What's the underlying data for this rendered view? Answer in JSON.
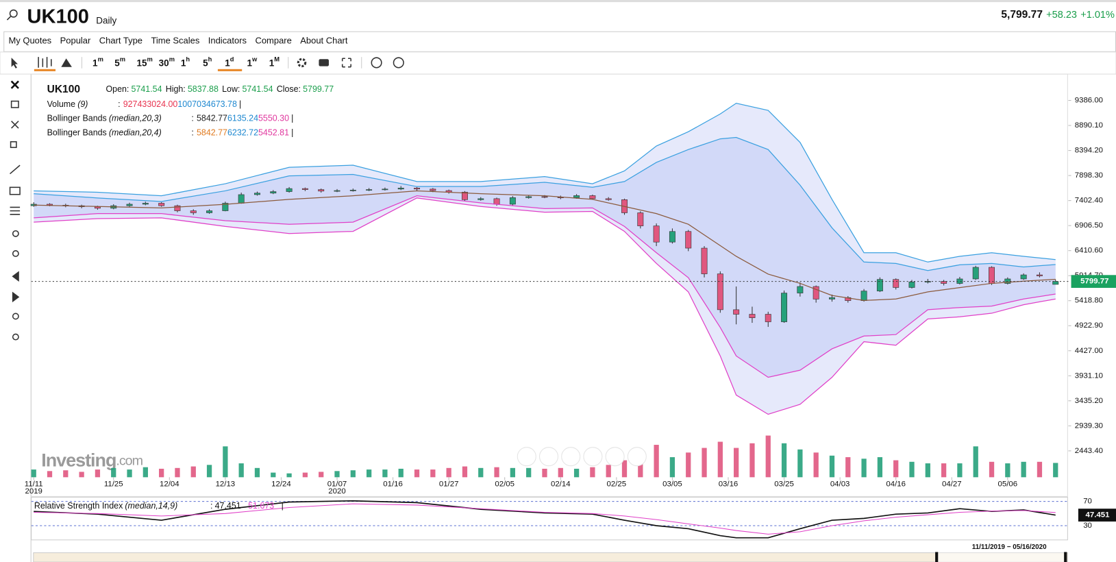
{
  "header": {
    "symbol": "UK100",
    "interval": "Daily",
    "price": "5,799.77",
    "change": "+58.23",
    "change_pct": "+1.01%"
  },
  "menu": [
    "My Quotes",
    "Popular",
    "Chart Type",
    "Time Scales",
    "Indicators",
    "Compare",
    "About Chart"
  ],
  "timeframes": [
    {
      "num": "1",
      "unit": "m"
    },
    {
      "num": "5",
      "unit": "m"
    },
    {
      "num": "15",
      "unit": "m"
    },
    {
      "num": "30",
      "unit": "m"
    },
    {
      "num": "1",
      "unit": "h"
    },
    {
      "num": "5",
      "unit": "h"
    },
    {
      "num": "1",
      "unit": "d",
      "active": true
    },
    {
      "num": "1",
      "unit": "w"
    },
    {
      "num": "1",
      "unit": "M"
    }
  ],
  "chart_data": {
    "type": "candlestick",
    "legend": {
      "symbol": "UK100",
      "fields": [
        {
          "label": "Open:",
          "value": "5741.54"
        },
        {
          "label": "High:",
          "value": "5837.88"
        },
        {
          "label": "Low:",
          "value": "5741.54"
        },
        {
          "label": "Close:",
          "value": "5799.77"
        }
      ],
      "sep": ":",
      "end": "|",
      "indicators": [
        {
          "name": "Volume",
          "params": "(9)",
          "values": [
            {
              "text": "927433024.00",
              "color": "#e8334f"
            },
            {
              "text": "1007034673.78",
              "color": "#1e88d0"
            }
          ]
        },
        {
          "name": "Bollinger Bands",
          "params": "(median,20,3)",
          "values": [
            {
              "text": "5842.77",
              "color": "#222222"
            },
            {
              "text": "6135.24",
              "color": "#1e88d0"
            },
            {
              "text": "5550.30",
              "color": "#e0379e"
            }
          ]
        },
        {
          "name": "Bollinger Bands",
          "params": "(median,20,4)",
          "values": [
            {
              "text": "5842.77",
              "color": "#e07b20"
            },
            {
              "text": "6232.72",
              "color": "#1e88d0"
            },
            {
              "text": "5452.81",
              "color": "#e0379e"
            }
          ]
        }
      ]
    },
    "x": [
      0,
      2,
      4,
      6,
      8,
      10,
      12,
      14,
      16,
      18,
      20,
      22,
      24,
      26,
      28,
      30,
      32,
      34,
      36,
      38,
      40,
      42,
      44,
      46,
      48,
      50,
      52,
      54,
      56,
      58,
      60,
      62,
      64,
      66,
      68,
      70,
      72,
      74,
      76,
      78,
      80,
      82,
      84,
      86,
      88,
      90,
      92,
      94,
      96,
      98,
      100,
      102,
      104,
      106,
      108,
      110,
      112,
      114,
      116,
      118,
      120,
      122,
      124,
      126,
      128
    ],
    "open": [
      7300,
      7330,
      7310,
      7300,
      7280,
      7250,
      7300,
      7330,
      7350,
      7300,
      7200,
      7160,
      7200,
      7350,
      7520,
      7550,
      7580,
      7640,
      7620,
      7590,
      7600,
      7610,
      7620,
      7630,
      7650,
      7630,
      7600,
      7570,
      7420,
      7440,
      7330,
      7460,
      7480,
      7470,
      7460,
      7500,
      7440,
      7420,
      7160,
      6900,
      6580,
      6790,
      6460,
      5950,
      5240,
      5150,
      5150,
      5000,
      5570,
      5700,
      5450,
      5480,
      5420,
      5610,
      5840,
      5680,
      5790,
      5800,
      5760,
      5850,
      6080,
      5760,
      5850,
      5930,
      5741.54
    ],
    "high": [
      7370,
      7350,
      7340,
      7320,
      7300,
      7330,
      7360,
      7380,
      7370,
      7320,
      7230,
      7230,
      7380,
      7560,
      7580,
      7610,
      7670,
      7660,
      7640,
      7630,
      7640,
      7650,
      7660,
      7690,
      7670,
      7650,
      7620,
      7590,
      7470,
      7460,
      7490,
      7510,
      7510,
      7500,
      7530,
      7520,
      7470,
      7440,
      7190,
      6950,
      6850,
      6820,
      6500,
      6000,
      5700,
      5300,
      5200,
      5620,
      5780,
      5720,
      5540,
      5510,
      5650,
      5880,
      5860,
      5830,
      5850,
      5830,
      5890,
      6110,
      6100,
      5880,
      5960,
      5980,
      5837.88
    ],
    "low": [
      7280,
      7290,
      7270,
      7250,
      7220,
      7230,
      7280,
      7310,
      7280,
      7170,
      7120,
      7140,
      7190,
      7340,
      7500,
      7530,
      7560,
      7590,
      7560,
      7570,
      7580,
      7590,
      7600,
      7610,
      7600,
      7570,
      7540,
      7390,
      7400,
      7300,
      7310,
      7440,
      7450,
      7430,
      7440,
      7420,
      7400,
      7120,
      6850,
      6500,
      6550,
      6400,
      5880,
      5180,
      4950,
      4980,
      4900,
      4980,
      5500,
      5380,
      5400,
      5380,
      5400,
      5590,
      5640,
      5660,
      5760,
      5720,
      5740,
      5830,
      5730,
      5740,
      5830,
      5880,
      5741.54
    ],
    "close": [
      7330,
      7310,
      7300,
      7280,
      7250,
      7300,
      7330,
      7350,
      7300,
      7200,
      7160,
      7200,
      7350,
      7520,
      7550,
      7580,
      7640,
      7620,
      7590,
      7600,
      7610,
      7620,
      7630,
      7650,
      7630,
      7600,
      7570,
      7420,
      7440,
      7330,
      7460,
      7480,
      7470,
      7460,
      7500,
      7440,
      7420,
      7160,
      6900,
      6580,
      6790,
      6460,
      5950,
      5240,
      5150,
      5080,
      5000,
      5570,
      5700,
      5450,
      5480,
      5420,
      5610,
      5840,
      5680,
      5790,
      5800,
      5760,
      5850,
      6080,
      5760,
      5850,
      5930,
      5910,
      5799.77
    ],
    "up_color": "#26a17b",
    "down_color": "#e0577f",
    "xlim": [
      -0.3,
      129.6
    ],
    "xticks": [
      {
        "value": 0,
        "label": "11/11"
      },
      {
        "value": 10,
        "label": "11/25"
      },
      {
        "value": 17,
        "label": "12/04"
      },
      {
        "value": 24,
        "label": "12/13"
      },
      {
        "value": 31,
        "label": "12/24"
      },
      {
        "value": 38,
        "label": "01/07"
      },
      {
        "value": 45,
        "label": "01/16"
      },
      {
        "value": 52,
        "label": "01/27"
      },
      {
        "value": 59,
        "label": "02/05"
      },
      {
        "value": 66,
        "label": "02/14"
      },
      {
        "value": 73,
        "label": "02/25"
      },
      {
        "value": 80,
        "label": "03/05"
      },
      {
        "value": 87,
        "label": "03/16"
      },
      {
        "value": 94,
        "label": "03/25"
      },
      {
        "value": 101,
        "label": "04/03"
      },
      {
        "value": 108,
        "label": "04/16"
      },
      {
        "value": 115,
        "label": "04/27"
      },
      {
        "value": 122,
        "label": "05/06"
      }
    ],
    "xtick_years": [
      {
        "value": 0,
        "label": "2019"
      },
      {
        "value": 38,
        "label": "2020"
      }
    ],
    "ylim": [
      1921,
      9894
    ],
    "yticks": [
      {
        "value": 9386,
        "label": "9386.00"
      },
      {
        "value": 8890.1,
        "label": "8890.10"
      },
      {
        "value": 8394.2,
        "label": "8394.20"
      },
      {
        "value": 7898.3,
        "label": "7898.30"
      },
      {
        "value": 7402.4,
        "label": "7402.40"
      },
      {
        "value": 6906.5,
        "label": "6906.50"
      },
      {
        "value": 6410.6,
        "label": "6410.60"
      },
      {
        "value": 5914.7,
        "label": "5914.70"
      },
      {
        "value": 5418.8,
        "label": "5418.80"
      },
      {
        "value": 4922.9,
        "label": "4922.90"
      },
      {
        "value": 4427,
        "label": "4427.00"
      },
      {
        "value": 3931.1,
        "label": "3931.10"
      },
      {
        "value": 3435.2,
        "label": "3435.20"
      },
      {
        "value": 2939.3,
        "label": "2939.30"
      },
      {
        "value": 2443.4,
        "label": "2443.40"
      }
    ],
    "band_x": [
      0,
      8,
      16,
      24,
      32,
      40,
      48,
      56,
      64,
      70,
      74,
      78,
      82,
      86,
      88,
      92,
      96,
      100,
      104,
      108,
      112,
      116,
      120,
      124,
      128
    ],
    "outer_fill": "#e6e9fb",
    "inner_fill": "#d2d9f8",
    "bands": [
      {
        "color": "#3aa0e0",
        "values": [
          7595,
          7567,
          7497,
          7736,
          8061,
          8103,
          7779,
          7779,
          7877,
          7736,
          7990,
          8483,
          8766,
          9118,
          9330,
          9189,
          8554,
          7426,
          6369,
          6369,
          6185,
          6298,
          6369,
          6298,
          6232.72
        ]
      },
      {
        "color": "#3aa0e0",
        "values": [
          7539,
          7454,
          7384,
          7595,
          7891,
          7920,
          7680,
          7680,
          7764,
          7666,
          7779,
          8159,
          8413,
          8625,
          8653,
          8413,
          7708,
          6862,
          6185,
          6157,
          6016,
          6129,
          6157,
          6087,
          6135.24
        ]
      },
      {
        "color": "#8b5a3c",
        "values": [
          7313,
          7285,
          7257,
          7327,
          7426,
          7497,
          7595,
          7539,
          7497,
          7426,
          7285,
          7144,
          6933,
          6510,
          6298,
          5945,
          5762,
          5522,
          5424,
          5452,
          5593,
          5678,
          5762,
          5805,
          5842.77
        ]
      },
      {
        "color": "#e040c8",
        "values": [
          7060,
          7144,
          7144,
          7003,
          6933,
          6975,
          7497,
          7356,
          7243,
          7257,
          6890,
          6369,
          5875,
          4888,
          4324,
          3901,
          4042,
          4465,
          4719,
          4747,
          5240,
          5283,
          5311,
          5452,
          5550.3
        ]
      },
      {
        "color": "#e040c8",
        "values": [
          6975,
          7045,
          7060,
          6890,
          6749,
          6792,
          7454,
          7285,
          7172,
          7187,
          6792,
          6157,
          5593,
          4324,
          3549,
          3168,
          3365,
          3901,
          4606,
          4536,
          5057,
          5099,
          5170,
          5339,
          5452.81
        ]
      }
    ],
    "volume": {
      "ylim": [
        0,
        3000000000.0
      ],
      "values": [
        500000000.0,
        400000000.0,
        450000000.0,
        350000000.0,
        500000000.0,
        600000000.0,
        500000000.0,
        650000000.0,
        550000000.0,
        600000000.0,
        700000000.0,
        800000000.0,
        2000000000.0,
        900000000.0,
        600000000.0,
        300000000.0,
        250000000.0,
        300000000.0,
        350000000.0,
        400000000.0,
        450000000.0,
        500000000.0,
        500000000.0,
        550000000.0,
        500000000.0,
        500000000.0,
        600000000.0,
        700000000.0,
        600000000.0,
        650000000.0,
        600000000.0,
        600000000.0,
        550000000.0,
        600000000.0,
        550000000.0,
        650000000.0,
        800000000.0,
        1100000000.0,
        1500000000.0,
        2100000000.0,
        1300000000.0,
        1600000000.0,
        1900000000.0,
        2300000000.0,
        1900000000.0,
        2200000000.0,
        2700000000.0,
        2200000000.0,
        1800000000.0,
        1600000000.0,
        1400000000.0,
        1300000000.0,
        1200000000.0,
        1300000000.0,
        1100000000.0,
        1000000000.0,
        900000000.0,
        900000000.0,
        900000000.0,
        2000000000.0,
        1000000000.0,
        900000000.0,
        1000000000.0,
        1000000000.0,
        927433024
      ]
    },
    "last_price_label": "5799.77",
    "rsi": {
      "name": "Relative Strength Index",
      "params": "(median,14,9)",
      "ylim": [
        6.5,
        77
      ],
      "yticks": [
        30,
        70
      ],
      "line_color": "#5a6fd0",
      "series": [
        {
          "color": "#111111",
          "label": "47.451",
          "values": [
            53.5,
            49,
            39,
            57,
            69,
            71,
            68,
            57,
            51,
            49,
            39,
            30,
            25,
            13.5,
            10,
            10,
            25,
            39,
            42,
            49,
            51,
            58,
            53.5,
            56,
            47.451
          ]
        },
        {
          "color": "#e040c8",
          "label": "51.673",
          "values": [
            52,
            50,
            46,
            50,
            60,
            66,
            64,
            58,
            52,
            50,
            46,
            40,
            33,
            26,
            22,
            16,
            20,
            30,
            38,
            44,
            48,
            52,
            54,
            55,
            51.673
          ]
        }
      ]
    },
    "watermark": "Investing",
    "watermark_suffix": ".com",
    "range_label": "11/11/2019 − 05/16/2020"
  }
}
